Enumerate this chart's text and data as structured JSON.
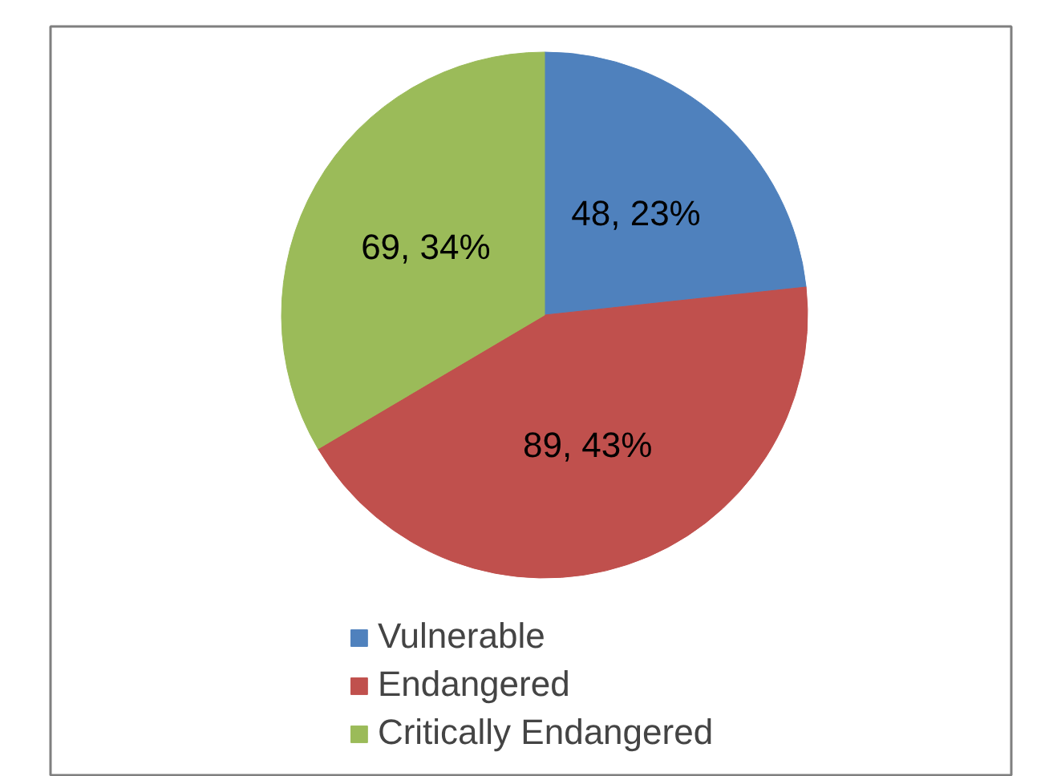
{
  "chart_data": {
    "type": "pie",
    "categories": [
      "Vulnerable",
      "Endangered",
      "Critically Endangered"
    ],
    "values": [
      48,
      89,
      69
    ],
    "colors": [
      "#4f81bd",
      "#c0504d",
      "#9bbb59"
    ],
    "value_labels": [
      "48, 23%",
      "89, 43%",
      "69, 34%"
    ],
    "legend": "bottom"
  }
}
